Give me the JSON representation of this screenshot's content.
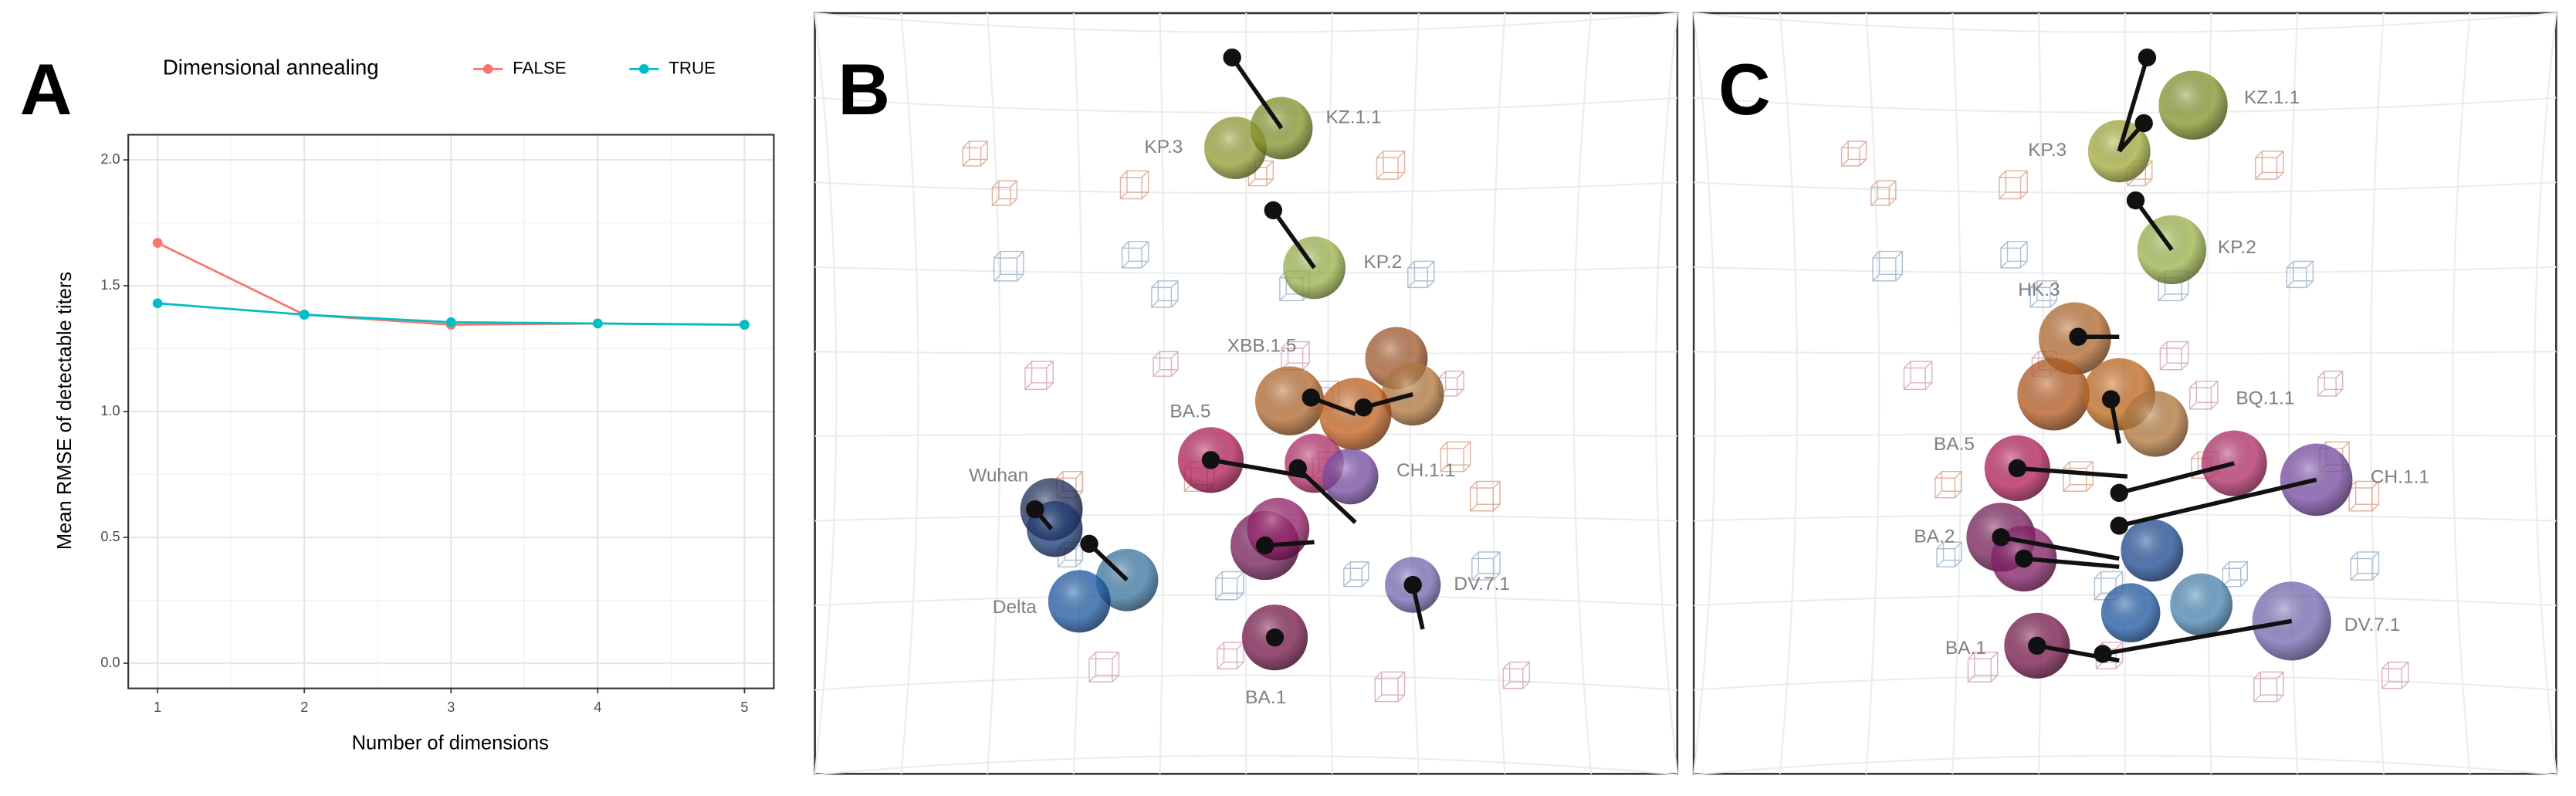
{
  "chart_data": {
    "type": "line",
    "panel_letter": "A",
    "x_label": "Number of dimensions",
    "y_label": "Mean RMSE of detectable titers",
    "legend_title": "Dimensional annealing",
    "x": [
      1,
      2,
      3,
      4,
      5
    ],
    "series": [
      {
        "name": "FALSE",
        "color": "#F8766D",
        "values": [
          1.67,
          1.385,
          1.345,
          1.35,
          1.345
        ]
      },
      {
        "name": "TRUE",
        "color": "#00BFC4",
        "values": [
          1.43,
          1.385,
          1.355,
          1.35,
          1.345
        ]
      }
    ],
    "xlim": [
      0.8,
      5.2
    ],
    "xticks": [
      1,
      2,
      3,
      4,
      5
    ],
    "ylim": [
      -0.1,
      2.1
    ],
    "yticks": [
      {
        "value": 0,
        "label": "0.0"
      },
      {
        "value": 0.5,
        "label": "0.5"
      },
      {
        "value": 1,
        "label": "1.0"
      },
      {
        "value": 1.5,
        "label": "1.5"
      },
      {
        "value": 2,
        "label": "2.0"
      }
    ],
    "grid": true,
    "legend_position": "top"
  },
  "panels": [
    {
      "letter": "B",
      "labels": [
        "KP.3",
        "KZ.1.1",
        "KP.2",
        "XBB.1.5",
        "BA.5",
        "CH.1.1",
        "Wuhan",
        "DV.7.1",
        "Delta",
        "BA.1"
      ]
    },
    {
      "letter": "C",
      "labels": [
        "KZ.1.1",
        "KP.3",
        "KP.2",
        "HK.3",
        "BQ.1.1",
        "BA.5",
        "CH.1.1",
        "BA.2",
        "DV.7.1",
        "BA.1"
      ]
    }
  ]
}
